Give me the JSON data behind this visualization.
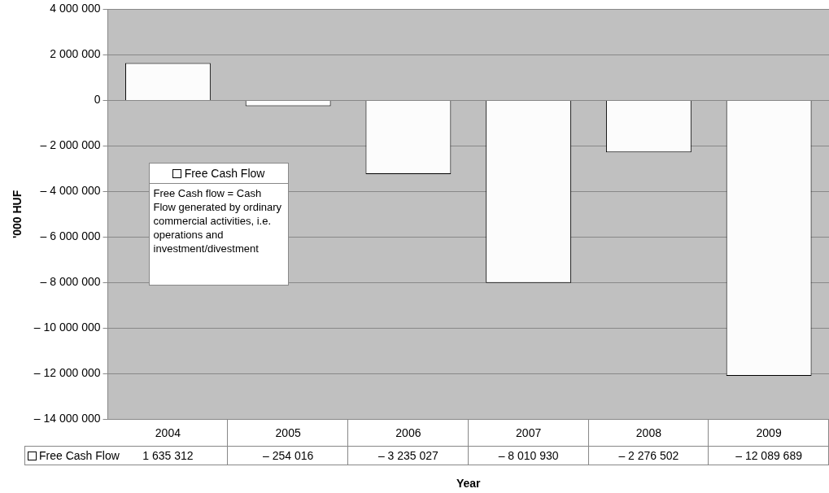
{
  "chart_data": {
    "type": "bar",
    "xlabel": "Year",
    "ylabel": "'000 HUF",
    "categories": [
      "2004",
      "2005",
      "2006",
      "2007",
      "2008",
      "2009"
    ],
    "series": [
      {
        "name": "Free Cash Flow",
        "color": "#fcfcfc",
        "values": [
          1635312,
          -254016,
          -3235027,
          -8010930,
          -2276502,
          -12089689
        ],
        "value_labels": [
          "1 635 312",
          "– 254 016",
          "– 3 235 027",
          "– 8 010 930",
          "– 2 276 502",
          "– 12 089 689"
        ]
      }
    ],
    "ylim": [
      -14000000,
      4000000
    ],
    "yticks": [
      {
        "value": -14000000,
        "label": "– 14 000 000"
      },
      {
        "value": -12000000,
        "label": "– 12 000 000"
      },
      {
        "value": -10000000,
        "label": "– 10 000 000"
      },
      {
        "value": -8000000,
        "label": "– 8 000 000"
      },
      {
        "value": -6000000,
        "label": "– 6 000 000"
      },
      {
        "value": -4000000,
        "label": "– 4 000 000"
      },
      {
        "value": -2000000,
        "label": "– 2 000 000"
      },
      {
        "value": 0,
        "label": "0"
      },
      {
        "value": 2000000,
        "label": "2 000 000"
      },
      {
        "value": 4000000,
        "label": "4 000 000"
      }
    ],
    "grid": "y",
    "legend": "left",
    "annotations": [
      "Free Cash flow = Cash Flow generated by ordinary commercial activities, i.e. operations and investment/divestment"
    ]
  }
}
